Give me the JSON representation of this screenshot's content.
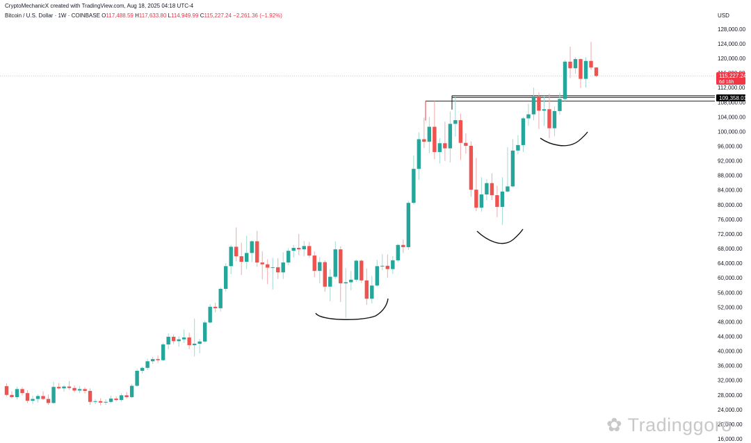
{
  "header": {
    "credit": "CryptoMechanicX created with TradingView.com, Aug 18, 2025 04:18 UTC-4",
    "symbol": "Bitcoin / U.S. Dollar · 1W · COINBASE",
    "ohlc": {
      "o_label": "O",
      "o": "117,488.59",
      "h_label": "H",
      "h": "117,633.80",
      "l_label": "L",
      "l": "114,949.99",
      "c_label": "C",
      "c": "115,227.24",
      "change": "−2,261.36 (−1.92%)"
    }
  },
  "axis": {
    "currency": "USD",
    "ticks": [
      "16,000.00",
      "20,000.00",
      "24,000.00",
      "28,000.00",
      "32,000.00",
      "36,000.00",
      "40,000.00",
      "44,000.00",
      "48,000.00",
      "52,000.00",
      "56,000.00",
      "60,000.00",
      "64,000.00",
      "68,000.00",
      "72,000.00",
      "76,000.00",
      "80,000.00",
      "84,000.00",
      "88,000.00",
      "92,000.00",
      "96,000.00",
      "100,000.00",
      "104,000.00",
      "108,000.00",
      "112,000.00",
      "116,000.00",
      "120,000.00",
      "124,000.00",
      "128,000.00"
    ]
  },
  "price_tag": {
    "value": "115,227.24",
    "countdown": "6d 16h"
  },
  "level_tag": {
    "value": "109,358.01"
  },
  "watermark": "Tradinggoro",
  "colors": {
    "up": "#26a69a",
    "down": "#ef5350",
    "tag": "#f23645",
    "grid": "#c8ccd4"
  },
  "chart_data": {
    "type": "candlestick",
    "timeframe": "1W",
    "exchange": "COINBASE",
    "y_unit": "USD",
    "ylim": [
      16000,
      129500
    ],
    "horizontal_levels": [
      108300,
      109358.01,
      109800
    ],
    "annotations": [
      "curve under 2024 base",
      "curve under early 2025 low",
      "curve under mid 2025 base"
    ],
    "candles": [
      [
        30400,
        31200,
        27600,
        28000
      ],
      [
        28000,
        29000,
        27000,
        27400
      ],
      [
        27400,
        30200,
        26800,
        29600
      ],
      [
        29600,
        30100,
        27900,
        28500
      ],
      [
        28500,
        29300,
        25800,
        26400
      ],
      [
        26400,
        27800,
        25500,
        26900
      ],
      [
        26900,
        28200,
        25900,
        27700
      ],
      [
        27700,
        29000,
        26600,
        26900
      ],
      [
        26900,
        28100,
        25300,
        25800
      ],
      [
        25800,
        31600,
        25600,
        30200
      ],
      [
        30200,
        31300,
        29500,
        29800
      ],
      [
        29800,
        30700,
        28900,
        30300
      ],
      [
        30300,
        31800,
        29400,
        29900
      ],
      [
        29900,
        30600,
        28800,
        29200
      ],
      [
        29200,
        30400,
        28500,
        29600
      ],
      [
        29600,
        30100,
        28400,
        29100
      ],
      [
        29100,
        29800,
        25300,
        26100
      ],
      [
        26100,
        26900,
        25500,
        26300
      ],
      [
        26300,
        27100,
        25200,
        25900
      ],
      [
        25900,
        26800,
        25300,
        26100
      ],
      [
        26100,
        27800,
        25700,
        27000
      ],
      [
        27000,
        27600,
        26300,
        26600
      ],
      [
        26600,
        28400,
        26200,
        27900
      ],
      [
        27900,
        28800,
        27000,
        27400
      ],
      [
        27400,
        31000,
        27100,
        30500
      ],
      [
        30500,
        35100,
        30200,
        34600
      ],
      [
        34600,
        35700,
        33900,
        35400
      ],
      [
        35400,
        37900,
        34800,
        37200
      ],
      [
        37200,
        38400,
        36500,
        37800
      ],
      [
        37800,
        38800,
        36800,
        37500
      ],
      [
        37500,
        42200,
        37300,
        41800
      ],
      [
        41800,
        44800,
        40500,
        43900
      ],
      [
        43900,
        44500,
        41900,
        42700
      ],
      [
        42700,
        44000,
        41200,
        43200
      ],
      [
        43200,
        45900,
        42200,
        43700
      ],
      [
        43700,
        45000,
        40500,
        41600
      ],
      [
        41600,
        48900,
        38500,
        42000
      ],
      [
        42000,
        43300,
        39400,
        42600
      ],
      [
        42600,
        48300,
        42300,
        47800
      ],
      [
        47800,
        52800,
        47500,
        52100
      ],
      [
        52100,
        53200,
        50600,
        51700
      ],
      [
        51700,
        57400,
        50800,
        57000
      ],
      [
        57000,
        64000,
        56300,
        63200
      ],
      [
        63200,
        69000,
        61000,
        68500
      ],
      [
        68500,
        73800,
        64500,
        65900
      ],
      [
        65900,
        69600,
        60800,
        64400
      ],
      [
        64400,
        71500,
        62400,
        66800
      ],
      [
        66800,
        70200,
        64300,
        70000
      ],
      [
        70000,
        72800,
        63000,
        64200
      ],
      [
        64200,
        67300,
        59600,
        63700
      ],
      [
        63700,
        65100,
        58300,
        62800
      ],
      [
        62800,
        65500,
        56800,
        62900
      ],
      [
        62900,
        65400,
        59700,
        61500
      ],
      [
        61500,
        67000,
        59700,
        64200
      ],
      [
        64200,
        68100,
        63500,
        67400
      ],
      [
        67400,
        69000,
        65600,
        68200
      ],
      [
        68200,
        72000,
        66200,
        67800
      ],
      [
        67800,
        70100,
        65900,
        68700
      ],
      [
        68700,
        69800,
        65500,
        66100
      ],
      [
        66100,
        67200,
        60200,
        61900
      ],
      [
        61900,
        65700,
        58500,
        64300
      ],
      [
        64300,
        64800,
        56200,
        57600
      ],
      [
        57600,
        62400,
        53600,
        60300
      ],
      [
        60300,
        70000,
        59700,
        67800
      ],
      [
        67800,
        68600,
        53400,
        58500
      ],
      [
        58500,
        62700,
        49100,
        58800
      ],
      [
        58800,
        61900,
        56600,
        59500
      ],
      [
        59500,
        65000,
        58900,
        64700
      ],
      [
        64700,
        65000,
        58600,
        59300
      ],
      [
        59300,
        62600,
        52600,
        54300
      ],
      [
        54300,
        60500,
        53000,
        57900
      ],
      [
        57900,
        64900,
        57500,
        63200
      ],
      [
        63200,
        66500,
        62100,
        63300
      ],
      [
        63300,
        66400,
        60000,
        62400
      ],
      [
        62400,
        65900,
        61100,
        64800
      ],
      [
        64800,
        69300,
        64300,
        69000
      ],
      [
        69000,
        70500,
        66800,
        68400
      ],
      [
        68400,
        81000,
        67600,
        80500
      ],
      [
        80500,
        93400,
        80100,
        89800
      ],
      [
        89800,
        99800,
        86800,
        97900
      ],
      [
        97900,
        103800,
        95500,
        97200
      ],
      [
        97200,
        104000,
        94100,
        101300
      ],
      [
        101300,
        108300,
        92400,
        94400
      ],
      [
        94400,
        98200,
        91300,
        96800
      ],
      [
        96800,
        102700,
        92000,
        95400
      ],
      [
        95400,
        105500,
        91500,
        102100
      ],
      [
        102100,
        109400,
        98600,
        103100
      ],
      [
        103100,
        104900,
        92200,
        96900
      ],
      [
        96900,
        99500,
        94000,
        96100
      ],
      [
        96100,
        97300,
        82200,
        84100
      ],
      [
        84100,
        92800,
        78200,
        79200
      ],
      [
        79200,
        87500,
        78100,
        82800
      ],
      [
        82800,
        87000,
        81200,
        85900
      ],
      [
        85900,
        88600,
        81300,
        82600
      ],
      [
        82600,
        85200,
        76600,
        79400
      ],
      [
        79400,
        87500,
        74500,
        83600
      ],
      [
        83600,
        95700,
        83300,
        85000
      ],
      [
        85000,
        97900,
        84800,
        94800
      ],
      [
        94800,
        99000,
        93800,
        96300
      ],
      [
        96300,
        104000,
        94400,
        103600
      ],
      [
        103600,
        107600,
        101600,
        104700
      ],
      [
        104700,
        112000,
        103100,
        109600
      ],
      [
        109600,
        110700,
        100700,
        105700
      ],
      [
        105700,
        109800,
        101500,
        106100
      ],
      [
        106100,
        110300,
        98200,
        100900
      ],
      [
        100900,
        106800,
        98700,
        105600
      ],
      [
        105600,
        110600,
        104600,
        108900
      ],
      [
        108900,
        119500,
        108300,
        119100
      ],
      [
        119100,
        123200,
        114600,
        117300
      ],
      [
        117300,
        120300,
        115800,
        119800
      ],
      [
        119800,
        120000,
        111900,
        114400
      ],
      [
        114400,
        120300,
        112000,
        119300
      ],
      [
        119300,
        124500,
        116900,
        117500
      ],
      [
        117500,
        117600,
        114900,
        115200
      ]
    ]
  }
}
